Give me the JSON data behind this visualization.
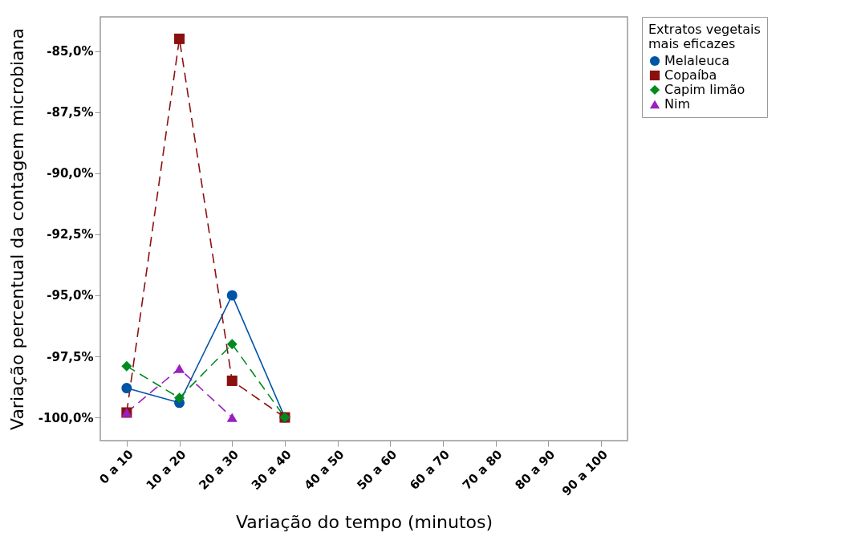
{
  "chart_data": {
    "type": "line",
    "xlabel": "Variação do tempo (minutos)",
    "ylabel": "Variação percentual da contagem microbiana",
    "legend_title": "Extratos vegetais\nmais eficazes",
    "categories": [
      "0 a 10",
      "10 a 20",
      "20 a 30",
      "30 a 40",
      "40 a 50",
      "50 a 60",
      "60 a 70",
      "70 a 80",
      "80 a 90",
      "90 a 100"
    ],
    "ylim": [
      -100.95,
      -83.6
    ],
    "yticks": [
      {
        "value": -100,
        "label": "-100,0%"
      },
      {
        "value": -97.5,
        "label": "-97,5%"
      },
      {
        "value": -95,
        "label": "-95,0%"
      },
      {
        "value": -92.5,
        "label": "-92,5%"
      },
      {
        "value": -90,
        "label": "-90,0%"
      },
      {
        "value": -87.5,
        "label": "-87,5%"
      },
      {
        "value": -85,
        "label": "-85,0%"
      }
    ],
    "grid": false,
    "legend": "right",
    "series": [
      {
        "name": "Melaleuca",
        "color": "#0054a6",
        "marker": "circle",
        "line_style": "solid",
        "values": [
          -98.8,
          -99.4,
          -95.0,
          -100.0,
          null,
          null,
          null,
          null,
          null,
          null
        ]
      },
      {
        "name": "Copaíba",
        "color": "#8b1010",
        "marker": "square",
        "line_style": "dashed",
        "values": [
          -99.8,
          -84.5,
          -98.5,
          -100.0,
          null,
          null,
          null,
          null,
          null,
          null
        ]
      },
      {
        "name": "Capim limão",
        "color": "#008a20",
        "marker": "diamond",
        "line_style": "dashed",
        "values": [
          -97.9,
          -99.2,
          -97.0,
          -100.0,
          null,
          null,
          null,
          null,
          null,
          null
        ]
      },
      {
        "name": "Nim",
        "color": "#9a1fbf",
        "marker": "triangle",
        "line_style": "dashed",
        "values": [
          -99.8,
          -98.0,
          -100.0,
          null,
          null,
          null,
          null,
          null,
          null,
          null
        ]
      }
    ]
  }
}
